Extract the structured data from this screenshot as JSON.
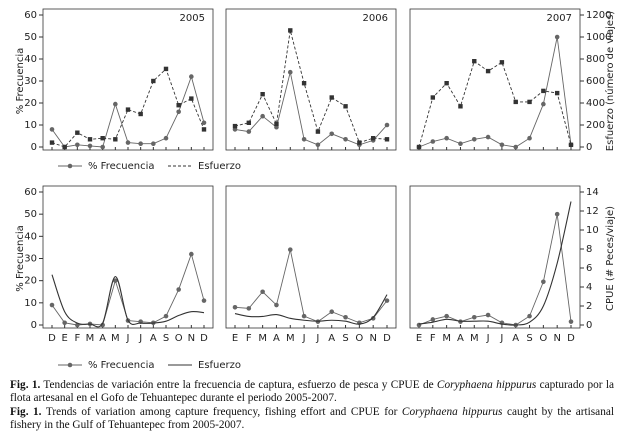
{
  "chart_data": [
    {
      "type": "line",
      "title": "2005",
      "ylabel": "% Frecuencia",
      "categories": [
        null,
        null,
        null,
        null,
        null,
        null,
        null,
        null,
        null,
        null,
        null,
        null,
        null
      ],
      "ylim": [
        0,
        60
      ],
      "yticks": [
        0,
        10,
        20,
        30,
        40,
        50,
        60
      ],
      "y2lim": [
        0,
        1200
      ],
      "series": [
        {
          "name": "% Frecuencia",
          "color": "#666666",
          "style": "solid",
          "marker": "circle",
          "values": [
            8,
            0,
            1,
            0.5,
            0,
            19.5,
            2,
            1.5,
            1.5,
            4,
            16,
            32,
            11
          ]
        },
        {
          "name": "Esfuerzo",
          "color": "#333333",
          "style": "dashed",
          "marker": "square",
          "axis": "y2",
          "values": [
            40,
            0,
            130,
            70,
            80,
            70,
            340,
            300,
            600,
            710,
            380,
            440,
            160
          ]
        }
      ]
    },
    {
      "type": "line",
      "title": "2006",
      "categories": [
        null,
        null,
        null,
        null,
        null,
        null,
        null,
        null,
        null,
        null,
        null,
        null
      ],
      "ylim": [
        0,
        60
      ],
      "y2lim": [
        0,
        1200
      ],
      "legend": true,
      "series": [
        {
          "name": "% Frecuencia",
          "color": "#666666",
          "style": "solid",
          "marker": "circle",
          "values": [
            8,
            7,
            14,
            9,
            34,
            3.5,
            1,
            6,
            3.5,
            1,
            3,
            10
          ]
        },
        {
          "name": "Esfuerzo",
          "color": "#333333",
          "style": "dashed",
          "marker": "square",
          "axis": "y2",
          "values": [
            190,
            220,
            480,
            210,
            1060,
            580,
            140,
            450,
            370,
            40,
            80,
            70
          ]
        }
      ]
    },
    {
      "type": "line",
      "title": "2007",
      "y2label": "Esfuerzo (número de viajes)",
      "categories": [
        null,
        null,
        null,
        null,
        null,
        null,
        null,
        null,
        null,
        null,
        null,
        null
      ],
      "ylim": [
        0,
        60
      ],
      "y2lim": [
        0,
        1200
      ],
      "y2ticks": [
        0,
        200,
        400,
        600,
        800,
        1000,
        1200
      ],
      "series": [
        {
          "name": "% Frecuencia",
          "color": "#666666",
          "style": "solid",
          "marker": "circle",
          "values": [
            0,
            2.5,
            4,
            1.5,
            3.5,
            4.5,
            1,
            0,
            4,
            19.5,
            50,
            1
          ]
        },
        {
          "name": "Esfuerzo",
          "color": "#333333",
          "style": "dashed",
          "marker": "square",
          "axis": "y2",
          "values": [
            0,
            450,
            580,
            370,
            780,
            690,
            770,
            410,
            410,
            510,
            490,
            20
          ]
        }
      ]
    },
    {
      "type": "line",
      "ylabel": "% Frecuencia",
      "categories": [
        "D",
        "E",
        "F",
        "M",
        "A",
        "M",
        "J",
        "J",
        "A",
        "S",
        "O",
        "N",
        "D"
      ],
      "ylim": [
        0,
        60
      ],
      "yticks": [
        0,
        10,
        20,
        30,
        40,
        50,
        60
      ],
      "y2lim": [
        0,
        14
      ],
      "series": [
        {
          "name": "% Frecuencia",
          "color": "#666666",
          "style": "solid",
          "marker": "circle",
          "values": [
            9,
            1,
            0,
            0.5,
            0,
            20,
            2,
            1.5,
            1,
            4,
            16,
            32,
            11
          ]
        },
        {
          "name": "Esfuerzo",
          "color": "#333333",
          "style": "solid",
          "smooth": true,
          "axis": "y2",
          "values": [
            5.3,
            1.4,
            0.2,
            0.1,
            0.2,
            5.1,
            0.5,
            0.2,
            0.2,
            0.4,
            1.0,
            1.4,
            1.3
          ]
        }
      ]
    },
    {
      "type": "line",
      "categories": [
        "E",
        "F",
        "M",
        "A",
        "M",
        "J",
        "J",
        "A",
        "S",
        "O",
        "N",
        "D"
      ],
      "ylim": [
        0,
        60
      ],
      "y2lim": [
        0,
        14
      ],
      "legend": true,
      "series": [
        {
          "name": "% Frecuencia",
          "color": "#666666",
          "style": "solid",
          "marker": "circle",
          "values": [
            8,
            7.5,
            15,
            9,
            34,
            4,
            1.5,
            6,
            3.5,
            1,
            3,
            11
          ]
        },
        {
          "name": "Esfuerzo",
          "color": "#333333",
          "style": "solid",
          "smooth": true,
          "axis": "y2",
          "values": [
            1.2,
            0.9,
            0.9,
            1.1,
            0.7,
            0.5,
            0.4,
            0.5,
            0.4,
            0.1,
            0.8,
            3.2
          ]
        }
      ]
    },
    {
      "type": "line",
      "y2label": "CPUE (# Peces/viaje)",
      "categories": [
        "E",
        "F",
        "M",
        "A",
        "M",
        "J",
        "J",
        "A",
        "S",
        "O",
        "N",
        "D"
      ],
      "ylim": [
        0,
        60
      ],
      "y2lim": [
        0,
        14
      ],
      "y2ticks": [
        0,
        2,
        4,
        6,
        8,
        10,
        12,
        14
      ],
      "series": [
        {
          "name": "% Frecuencia",
          "color": "#666666",
          "style": "solid",
          "marker": "circle",
          "values": [
            0,
            2.5,
            4,
            1.5,
            3.5,
            4.5,
            1,
            0,
            4,
            19.5,
            50,
            1.5
          ]
        },
        {
          "name": "Esfuerzo",
          "color": "#333333",
          "style": "solid",
          "smooth": true,
          "axis": "y2",
          "values": [
            0.1,
            0.3,
            0.6,
            0.4,
            0.4,
            0.4,
            0.1,
            0,
            0.3,
            2,
            6.5,
            13
          ]
        }
      ]
    }
  ],
  "caption": [
    [
      "Fig. 1.",
      " Tendencias de variación entre la frecuencia de captura, esfuerzo de pesca y CPUE de ",
      "Coryphaena hippurus",
      " capturado por la flota artesanal en el Gofo de Tehuantepec durante el periodo 2005-2007."
    ],
    [
      "Fig. 1.",
      " Trends of variation among capture frequency, fishing effort and CPUE for ",
      "Coryphaena hippurus",
      " caught by the artisanal fishery in the Gulf of Tehuantepec from 2005-2007."
    ]
  ]
}
